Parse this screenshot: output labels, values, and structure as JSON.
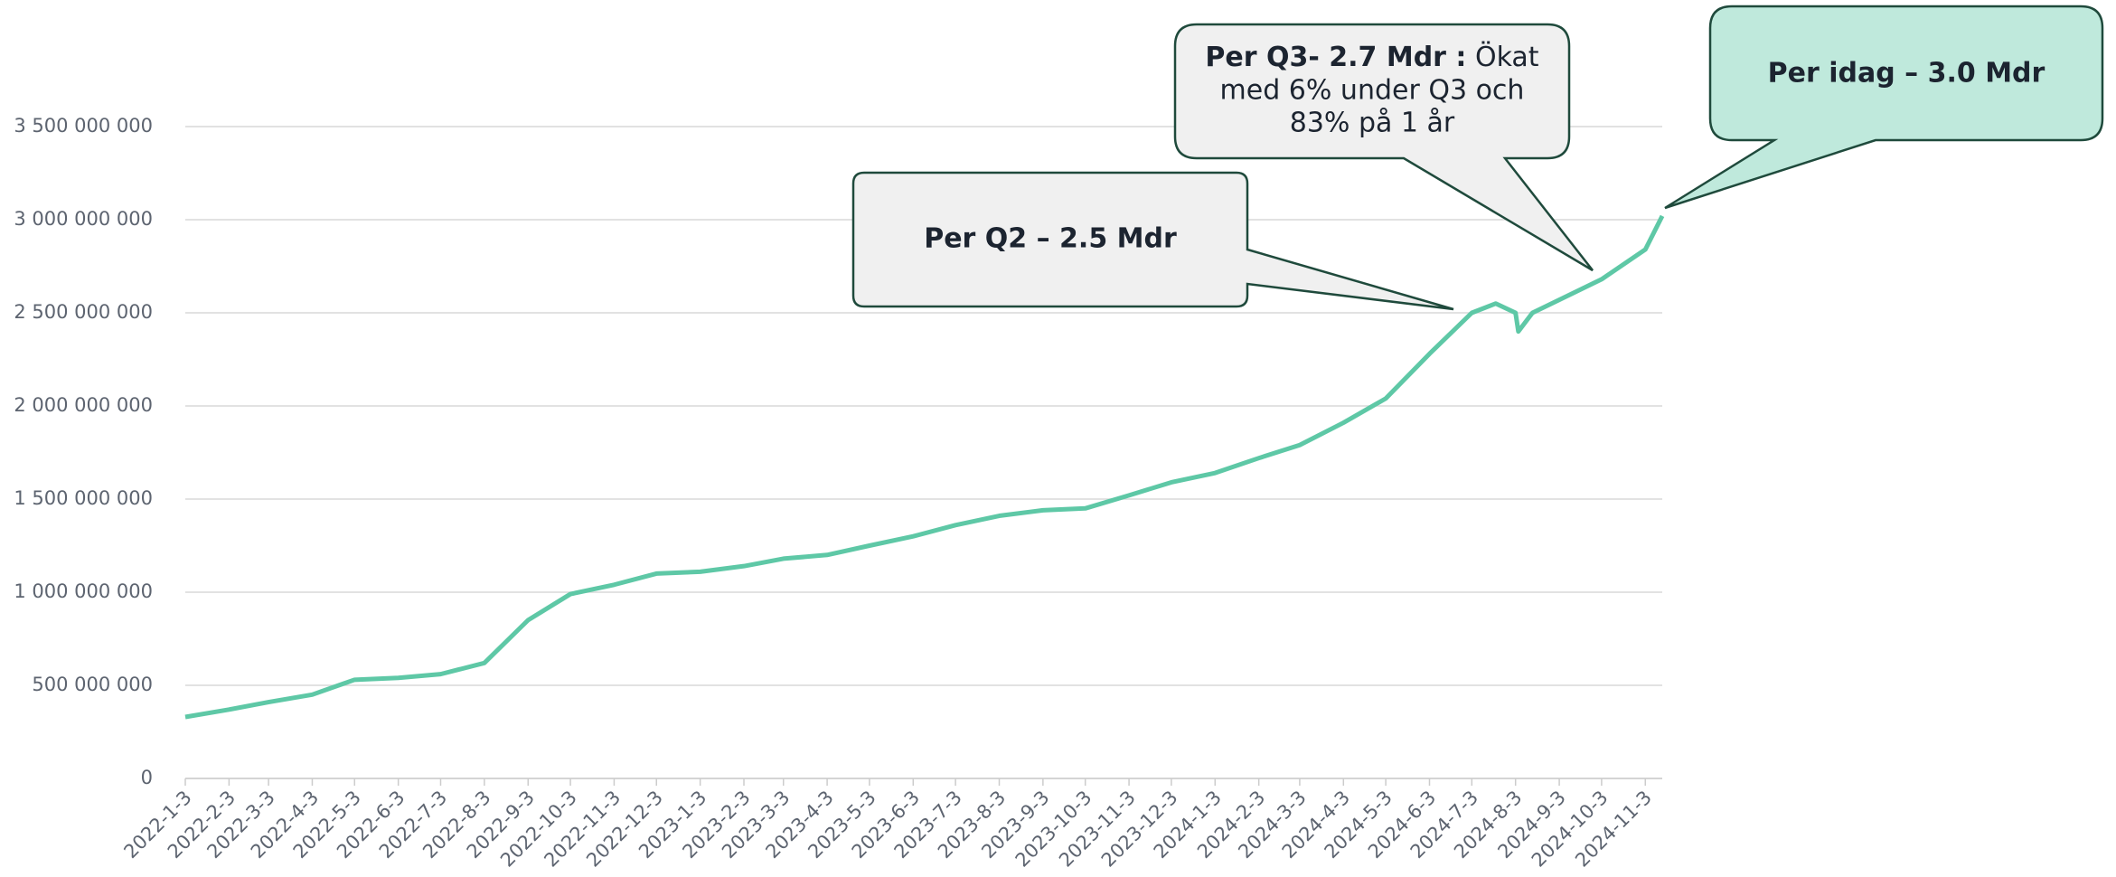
{
  "chart_data": {
    "type": "line",
    "x": [
      "2022-1-3",
      "2022-2-3",
      "2022-3-3",
      "2022-4-3",
      "2022-5-3",
      "2022-6-3",
      "2022-7-3",
      "2022-8-3",
      "2022-9-3",
      "2022-10-3",
      "2022-11-3",
      "2022-12-3",
      "2023-1-3",
      "2023-2-3",
      "2023-3-3",
      "2023-4-3",
      "2023-5-3",
      "2023-6-3",
      "2023-7-3",
      "2023-8-3",
      "2023-9-3",
      "2023-10-3",
      "2023-11-3",
      "2023-12-3",
      "2024-1-3",
      "2024-2-3",
      "2024-3-3",
      "2024-4-3",
      "2024-5-3",
      "2024-6-3",
      "2024-7-3",
      "2024-7-20",
      "2024-8-3",
      "2024-8-5",
      "2024-8-15",
      "2024-9-3",
      "2024-10-3",
      "2024-11-3",
      "2024-11-15"
    ],
    "series": [
      {
        "name": "Value",
        "color": "#5ec8a6",
        "values": [
          330000000,
          370000000,
          410000000,
          450000000,
          530000000,
          540000000,
          560000000,
          620000000,
          850000000,
          990000000,
          1040000000,
          1100000000,
          1110000000,
          1140000000,
          1180000000,
          1200000000,
          1250000000,
          1300000000,
          1360000000,
          1410000000,
          1440000000,
          1450000000,
          1520000000,
          1590000000,
          1640000000,
          1720000000,
          1790000000,
          1910000000,
          2040000000,
          2280000000,
          2500000000,
          2550000000,
          2500000000,
          2400000000,
          2500000000,
          2570000000,
          2680000000,
          2840000000,
          3020000000
        ]
      }
    ],
    "xlim": [
      "2022-1-3",
      "2024-11-15"
    ],
    "xticks": [
      "2022-1-3",
      "2022-2-3",
      "2022-3-3",
      "2022-4-3",
      "2022-5-3",
      "2022-6-3",
      "2022-7-3",
      "2022-8-3",
      "2022-9-3",
      "2022-10-3",
      "2022-11-3",
      "2022-12-3",
      "2023-1-3",
      "2023-2-3",
      "2023-3-3",
      "2023-4-3",
      "2023-5-3",
      "2023-6-3",
      "2023-7-3",
      "2023-8-3",
      "2023-9-3",
      "2023-10-3",
      "2023-11-3",
      "2023-12-3",
      "2024-1-3",
      "2024-2-3",
      "2024-3-3",
      "2024-4-3",
      "2024-5-3",
      "2024-6-3",
      "2024-7-3",
      "2024-8-3",
      "2024-9-3",
      "2024-10-3",
      "2024-11-3"
    ],
    "ylim": [
      0,
      3500000000
    ],
    "yticks": [
      0,
      {
        "value": 500000000,
        "label": "500 000 000"
      },
      {
        "value": 1000000000,
        "label": "1 000 000 000"
      },
      {
        "value": 1500000000,
        "label": "1 500 000 000"
      },
      {
        "value": 2000000000,
        "label": "2 000 000 000"
      },
      {
        "value": 2500000000,
        "label": "2 500 000 000"
      },
      {
        "value": 3000000000,
        "label": "3 000 000 000"
      },
      {
        "value": 3500000000,
        "label": "3 500 000 000"
      }
    ],
    "grid": true,
    "annotations": [
      {
        "lines": [
          "Per Q2 – 2.5 Mdr"
        ]
      },
      {
        "bold": "Per Q3- 2.7 Mdr :",
        "lines": [
          "Ökat",
          "med 6% under Q3 och",
          "83% på 1 år"
        ]
      },
      {
        "lines": [
          "Per idag – 3.0 Mdr"
        ]
      }
    ]
  }
}
